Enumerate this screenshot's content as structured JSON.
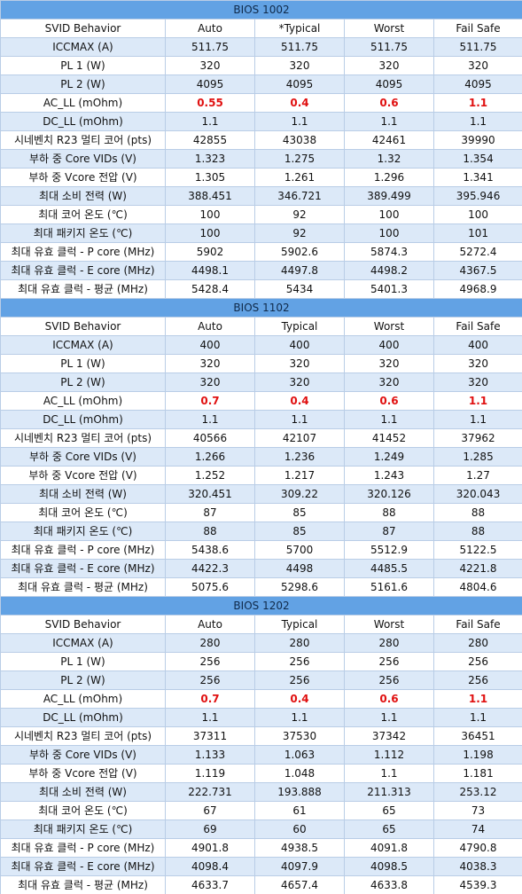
{
  "sections": [
    {
      "title": "BIOS 1002",
      "header": [
        "SVID Behavior",
        "Auto",
        "*Typical",
        "Worst",
        "Fail Safe"
      ],
      "rows": [
        [
          "ICCMAX (A)",
          "511.75",
          "511.75",
          "511.75",
          "511.75"
        ],
        [
          "PL 1 (W)",
          "320",
          "320",
          "320",
          "320"
        ],
        [
          "PL 2 (W)",
          "4095",
          "4095",
          "4095",
          "4095"
        ],
        [
          "AC_LL (mOhm)",
          "0.55",
          "0.4",
          "0.6",
          "1.1"
        ],
        [
          "DC_LL (mOhm)",
          "1.1",
          "1.1",
          "1.1",
          "1.1"
        ],
        [
          "시네벤치 R23 멀티 코어 (pts)",
          "42855",
          "43038",
          "42461",
          "39990"
        ],
        [
          "부하 중 Core VIDs (V)",
          "1.323",
          "1.275",
          "1.32",
          "1.354"
        ],
        [
          "부하 중 Vcore 전압 (V)",
          "1.305",
          "1.261",
          "1.296",
          "1.341"
        ],
        [
          "최대 소비 전력 (W)",
          "388.451",
          "346.721",
          "389.499",
          "395.946"
        ],
        [
          "최대 코어 온도 (℃)",
          "100",
          "92",
          "100",
          "100"
        ],
        [
          "최대 패키지 온도 (℃)",
          "100",
          "92",
          "100",
          "101"
        ],
        [
          "최대 유효 클럭 - P core (MHz)",
          "5902",
          "5902.6",
          "5874.3",
          "5272.4"
        ],
        [
          "최대 유효 클럭 - E core (MHz)",
          "4498.1",
          "4497.8",
          "4498.2",
          "4367.5"
        ],
        [
          "최대 유효 클럭 - 평균 (MHz)",
          "5428.4",
          "5434",
          "5401.3",
          "4968.9"
        ]
      ]
    },
    {
      "title": "BIOS 1102",
      "header": [
        "SVID Behavior",
        "Auto",
        "Typical",
        "Worst",
        "Fail Safe"
      ],
      "rows": [
        [
          "ICCMAX (A)",
          "400",
          "400",
          "400",
          "400"
        ],
        [
          "PL 1 (W)",
          "320",
          "320",
          "320",
          "320"
        ],
        [
          "PL 2 (W)",
          "320",
          "320",
          "320",
          "320"
        ],
        [
          "AC_LL (mOhm)",
          "0.7",
          "0.4",
          "0.6",
          "1.1"
        ],
        [
          "DC_LL (mOhm)",
          "1.1",
          "1.1",
          "1.1",
          "1.1"
        ],
        [
          "시네벤치 R23 멀티 코어 (pts)",
          "40566",
          "42107",
          "41452",
          "37962"
        ],
        [
          "부하 중 Core VIDs (V)",
          "1.266",
          "1.236",
          "1.249",
          "1.285"
        ],
        [
          "부하 중 Vcore 전압 (V)",
          "1.252",
          "1.217",
          "1.243",
          "1.27"
        ],
        [
          "최대 소비 전력 (W)",
          "320.451",
          "309.22",
          "320.126",
          "320.043"
        ],
        [
          "최대 코어 온도 (℃)",
          "87",
          "85",
          "88",
          "88"
        ],
        [
          "최대 패키지 온도 (℃)",
          "88",
          "85",
          "87",
          "88"
        ],
        [
          "최대 유효 클럭 - P core (MHz)",
          "5438.6",
          "5700",
          "5512.9",
          "5122.5"
        ],
        [
          "최대 유효 클럭 - E core (MHz)",
          "4422.3",
          "4498",
          "4485.5",
          "4221.8"
        ],
        [
          "최대 유효 클럭 - 평균 (MHz)",
          "5075.6",
          "5298.6",
          "5161.6",
          "4804.6"
        ]
      ]
    },
    {
      "title": "BIOS 1202",
      "header": [
        "SVID Behavior",
        "Auto",
        "Typical",
        "Worst",
        "Fail Safe"
      ],
      "rows": [
        [
          "ICCMAX (A)",
          "280",
          "280",
          "280",
          "280"
        ],
        [
          "PL 1 (W)",
          "256",
          "256",
          "256",
          "256"
        ],
        [
          "PL 2 (W)",
          "256",
          "256",
          "256",
          "256"
        ],
        [
          "AC_LL (mOhm)",
          "0.7",
          "0.4",
          "0.6",
          "1.1"
        ],
        [
          "DC_LL (mOhm)",
          "1.1",
          "1.1",
          "1.1",
          "1.1"
        ],
        [
          "시네벤치 R23 멀티 코어 (pts)",
          "37311",
          "37530",
          "37342",
          "36451"
        ],
        [
          "부하 중 Core VIDs (V)",
          "1.133",
          "1.063",
          "1.112",
          "1.198"
        ],
        [
          "부하 중 Vcore 전압 (V)",
          "1.119",
          "1.048",
          "1.1",
          "1.181"
        ],
        [
          "최대 소비 전력 (W)",
          "222.731",
          "193.888",
          "211.313",
          "253.12"
        ],
        [
          "최대 코어 온도 (℃)",
          "67",
          "61",
          "65",
          "73"
        ],
        [
          "최대 패키지 온도 (℃)",
          "69",
          "60",
          "65",
          "74"
        ],
        [
          "최대 유효 클럭 - P core (MHz)",
          "4901.8",
          "4938.5",
          "4091.8",
          "4790.8"
        ],
        [
          "최대 유효 클럭 - E core (MHz)",
          "4098.4",
          "4097.9",
          "4098.5",
          "4038.3"
        ],
        [
          "최대 유효 클럭 - 평균 (MHz)",
          "4633.7",
          "4657.4",
          "4633.8",
          "4539.3"
        ]
      ]
    }
  ]
}
